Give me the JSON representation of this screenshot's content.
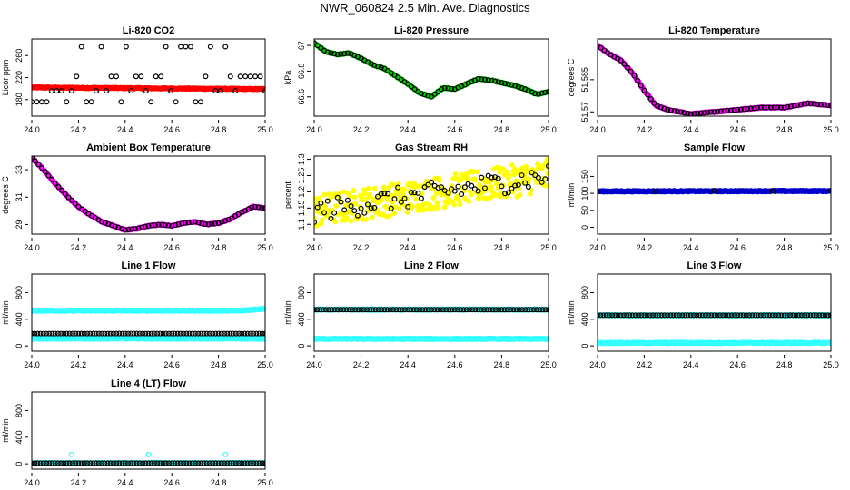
{
  "figure_title": "NWR_060824  2.5 Min. Ave. Diagnostics",
  "chart_data": [
    {
      "id": "co2",
      "type": "scatter",
      "title": "Li-820 CO2",
      "ylabel": "Licor ppm",
      "xlabel": "",
      "xlim": [
        24.0,
        25.0
      ],
      "ylim": [
        150,
        290
      ],
      "xticks": [
        24.0,
        24.2,
        24.4,
        24.6,
        24.8,
        25.0
      ],
      "yticks": [
        180,
        220,
        260
      ],
      "series": [
        {
          "name": "Li-820 CO2 (1 Hz)",
          "color": "#ff0000",
          "style": "dense",
          "x": [
            24.0,
            25.0
          ],
          "y": [
            202,
            199
          ]
        },
        {
          "name": "Li-820 CO2 (avg)",
          "color": "#000000",
          "style": "points",
          "x": [
            24.0,
            24.1,
            24.2,
            24.3,
            24.4,
            24.5,
            24.6,
            24.7,
            24.8,
            24.9,
            25.0
          ],
          "y": [
            176,
            222,
            276,
            196,
            176,
            276,
            196,
            222,
            176,
            276,
            222
          ]
        }
      ]
    },
    {
      "id": "pressure",
      "type": "scatter",
      "title": "Li-820 Pressure",
      "ylabel": "kPa",
      "xlabel": "",
      "xlim": [
        24.0,
        25.0
      ],
      "ylim": [
        66.45,
        67.05
      ],
      "xticks": [
        24.0,
        24.2,
        24.4,
        24.6,
        24.8,
        25.0
      ],
      "yticks": [
        66.6,
        66.8,
        67.0
      ],
      "series": [
        {
          "name": "pressure (1 Hz)",
          "color": "#00cc00",
          "style": "dense",
          "x": [
            24.0,
            24.05,
            24.1,
            24.15,
            24.2,
            24.25,
            24.3,
            24.35,
            24.4,
            24.45,
            24.5,
            24.55,
            24.6,
            24.65,
            24.7,
            24.75,
            24.8,
            24.85,
            24.9,
            24.95,
            25.0
          ],
          "y": [
            67.02,
            66.95,
            66.93,
            66.94,
            66.9,
            66.85,
            66.82,
            66.76,
            66.7,
            66.63,
            66.6,
            66.67,
            66.66,
            66.7,
            66.74,
            66.73,
            66.71,
            66.69,
            66.66,
            66.62,
            66.64
          ]
        },
        {
          "name": "pressure (avg)",
          "color": "#000000",
          "style": "points",
          "x": [
            24.0,
            24.05,
            24.1,
            24.15,
            24.2,
            24.25,
            24.3,
            24.35,
            24.4,
            24.45,
            24.5,
            24.55,
            24.6,
            24.65,
            24.7,
            24.75,
            24.8,
            24.85,
            24.9,
            24.95,
            25.0
          ],
          "y": [
            67.02,
            66.95,
            66.93,
            66.94,
            66.9,
            66.85,
            66.82,
            66.76,
            66.7,
            66.63,
            66.6,
            66.67,
            66.66,
            66.7,
            66.74,
            66.73,
            66.71,
            66.69,
            66.66,
            66.62,
            66.64
          ]
        }
      ]
    },
    {
      "id": "licor_temp",
      "type": "scatter",
      "title": "Li-820 Temperature",
      "ylabel": "degrees C",
      "xlabel": "",
      "xlim": [
        24.0,
        25.0
      ],
      "ylim": [
        51.568,
        51.604
      ],
      "xticks": [
        24.0,
        24.2,
        24.4,
        24.6,
        24.8,
        25.0
      ],
      "yticks": [
        51.57,
        51.585
      ],
      "series": [
        {
          "name": "temperature (1 Hz)",
          "color": "#ff00ff",
          "style": "dense",
          "x": [
            24.0,
            24.05,
            24.1,
            24.15,
            24.2,
            24.25,
            24.3,
            24.35,
            24.4,
            24.5,
            24.6,
            24.7,
            24.8,
            24.9,
            25.0
          ],
          "y": [
            51.601,
            51.597,
            51.594,
            51.588,
            51.58,
            51.573,
            51.571,
            51.57,
            51.569,
            51.57,
            51.571,
            51.572,
            51.572,
            51.574,
            51.573
          ]
        },
        {
          "name": "temperature (avg)",
          "color": "#000000",
          "style": "points",
          "x": [
            24.0,
            24.05,
            24.1,
            24.15,
            24.2,
            24.25,
            24.3,
            24.35,
            24.4,
            24.5,
            24.6,
            24.7,
            24.8,
            24.9,
            25.0
          ],
          "y": [
            51.601,
            51.597,
            51.594,
            51.588,
            51.58,
            51.573,
            51.571,
            51.57,
            51.569,
            51.57,
            51.571,
            51.572,
            51.572,
            51.574,
            51.573
          ]
        }
      ]
    },
    {
      "id": "box_temp",
      "type": "scatter",
      "title": "Ambient Box Temperature",
      "ylabel": "degrees C",
      "xlabel": "",
      "xlim": [
        24.0,
        25.0
      ],
      "ylim": [
        28.3,
        34.0
      ],
      "xticks": [
        24.0,
        24.2,
        24.4,
        24.6,
        24.8,
        25.0
      ],
      "yticks": [
        29,
        31,
        33
      ],
      "series": [
        {
          "name": "box temperature (1 Hz)",
          "color": "#ff00ff",
          "style": "dense",
          "x": [
            24.0,
            24.05,
            24.1,
            24.15,
            24.2,
            24.25,
            24.3,
            24.35,
            24.4,
            24.45,
            24.5,
            24.55,
            24.6,
            24.65,
            24.7,
            24.75,
            24.8,
            24.85,
            24.9,
            24.95,
            25.0
          ],
          "y": [
            33.9,
            33.0,
            32.0,
            31.1,
            30.3,
            29.7,
            29.2,
            28.9,
            28.6,
            28.7,
            28.9,
            29.0,
            28.9,
            29.1,
            29.2,
            29.0,
            29.1,
            29.4,
            29.9,
            30.3,
            30.2
          ]
        },
        {
          "name": "box temperature (avg)",
          "color": "#000000",
          "style": "points",
          "x": [
            24.0,
            24.05,
            24.1,
            24.15,
            24.2,
            24.25,
            24.3,
            24.35,
            24.4,
            24.45,
            24.5,
            24.55,
            24.6,
            24.65,
            24.7,
            24.75,
            24.8,
            24.85,
            24.9,
            24.95,
            25.0
          ],
          "y": [
            33.9,
            33.0,
            32.0,
            31.1,
            30.3,
            29.7,
            29.2,
            28.9,
            28.6,
            28.7,
            28.9,
            29.0,
            28.9,
            29.1,
            29.2,
            29.0,
            29.1,
            29.4,
            29.9,
            30.3,
            30.2
          ]
        }
      ]
    },
    {
      "id": "gas_rh",
      "type": "scatter",
      "title": "Gas Stream RH",
      "ylabel": "percent",
      "xlabel": "",
      "xlim": [
        24.0,
        25.0
      ],
      "ylim": [
        1.07,
        1.31
      ],
      "xticks": [
        24.0,
        24.2,
        24.4,
        24.6,
        24.8,
        25.0
      ],
      "yticks": [
        1.1,
        1.15,
        1.2,
        1.25,
        1.3
      ],
      "series": [
        {
          "name": "RH (1 Hz)",
          "color": "#ffff00",
          "style": "band",
          "x": [
            24.0,
            25.0
          ],
          "y": [
            1.14,
            1.25
          ],
          "spread": 0.05
        },
        {
          "name": "RH (avg)",
          "color": "#000000",
          "style": "band",
          "x": [
            24.0,
            25.0
          ],
          "y": [
            1.14,
            1.25
          ],
          "spread": 0.035
        }
      ]
    },
    {
      "id": "sample_flow",
      "type": "scatter",
      "title": "Sample Flow",
      "ylabel": "ml/min",
      "xlabel": "",
      "xlim": [
        24.0,
        25.0
      ],
      "ylim": [
        -20,
        210
      ],
      "xticks": [
        24.0,
        24.2,
        24.4,
        24.6,
        24.8,
        25.0
      ],
      "yticks": [
        0,
        50,
        100,
        150
      ],
      "series": [
        {
          "name": "sample flow (1 Hz)",
          "color": "#0000cc",
          "style": "dense",
          "x": [
            24.0,
            25.0
          ],
          "y": [
            106,
            107
          ]
        },
        {
          "name": "sample flow (avg)",
          "color": "#000000",
          "style": "points",
          "x": [
            24.0,
            24.25,
            24.5,
            24.75,
            25.0
          ],
          "y": [
            106,
            106,
            107,
            107,
            107
          ]
        }
      ]
    },
    {
      "id": "line1_flow",
      "type": "scatter",
      "title": "Line 1 Flow",
      "ylabel": "ml/min",
      "xlabel": "",
      "xlim": [
        24.0,
        25.0
      ],
      "ylim": [
        -80,
        1080
      ],
      "xticks": [
        24.0,
        24.2,
        24.4,
        24.6,
        24.8,
        25.0
      ],
      "yticks": [
        0,
        400,
        800
      ],
      "series": [
        {
          "name": "line 1 upper (1 Hz)",
          "color": "#33ffff",
          "style": "dense",
          "x": [
            24.0,
            24.9,
            25.0
          ],
          "y": [
            530,
            530,
            560
          ]
        },
        {
          "name": "line 1 lower (1 Hz)",
          "color": "#33ffff",
          "style": "dense",
          "x": [
            24.0,
            25.0
          ],
          "y": [
            110,
            110
          ]
        },
        {
          "name": "line 1 (avg)",
          "color": "#000000",
          "style": "points",
          "x": [
            24.0,
            25.0
          ],
          "y": [
            185,
            185
          ]
        }
      ]
    },
    {
      "id": "line2_flow",
      "type": "scatter",
      "title": "Line 2 Flow",
      "ylabel": "ml/min",
      "xlabel": "",
      "xlim": [
        24.0,
        25.0
      ],
      "ylim": [
        -80,
        1080
      ],
      "xticks": [
        24.0,
        24.2,
        24.4,
        24.6,
        24.8,
        25.0
      ],
      "yticks": [
        0,
        400,
        800
      ],
      "series": [
        {
          "name": "line 2 upper (1 Hz)",
          "color": "#33ffff",
          "style": "dense",
          "x": [
            24.0,
            25.0
          ],
          "y": [
            545,
            545
          ]
        },
        {
          "name": "line 2 lower (1 Hz)",
          "color": "#33ffff",
          "style": "dense",
          "x": [
            24.0,
            25.0
          ],
          "y": [
            105,
            105
          ]
        },
        {
          "name": "line 2 (avg)",
          "color": "#000000",
          "style": "points",
          "x": [
            24.0,
            25.0
          ],
          "y": [
            545,
            545
          ]
        }
      ]
    },
    {
      "id": "line3_flow",
      "type": "scatter",
      "title": "Line 3 Flow",
      "ylabel": "ml/min",
      "xlabel": "",
      "xlim": [
        24.0,
        25.0
      ],
      "ylim": [
        -80,
        1080
      ],
      "xticks": [
        24.0,
        24.2,
        24.4,
        24.6,
        24.8,
        25.0
      ],
      "yticks": [
        0,
        400,
        800
      ],
      "series": [
        {
          "name": "line 3 upper (1 Hz)",
          "color": "#33ffff",
          "style": "dense",
          "x": [
            24.0,
            25.0
          ],
          "y": [
            460,
            460
          ]
        },
        {
          "name": "line 3 lower (1 Hz)",
          "color": "#33ffff",
          "style": "dense",
          "x": [
            24.0,
            25.0
          ],
          "y": [
            45,
            45
          ]
        },
        {
          "name": "line 3 (avg)",
          "color": "#000000",
          "style": "points",
          "x": [
            24.0,
            25.0
          ],
          "y": [
            460,
            460
          ]
        }
      ]
    },
    {
      "id": "line4_flow",
      "type": "scatter",
      "title": "Line 4 (LT) Flow",
      "ylabel": "ml/min",
      "xlabel": "",
      "xlim": [
        24.0,
        25.0
      ],
      "ylim": [
        -80,
        1080
      ],
      "xticks": [
        24.0,
        24.2,
        24.4,
        24.6,
        24.8,
        25.0
      ],
      "yticks": [
        0,
        400,
        800
      ],
      "series": [
        {
          "name": "line 4 (1 Hz)",
          "color": "#33ffff",
          "style": "dense",
          "x": [
            24.0,
            25.0
          ],
          "y": [
            10,
            10
          ]
        },
        {
          "name": "line 4 spikes",
          "color": "#33ffff",
          "style": "points",
          "x": [
            24.17,
            24.5,
            24.83
          ],
          "y": [
            140,
            140,
            140
          ]
        },
        {
          "name": "line 4 (avg)",
          "color": "#000000",
          "style": "points",
          "x": [
            24.0,
            25.0
          ],
          "y": [
            10,
            10
          ]
        }
      ]
    }
  ]
}
